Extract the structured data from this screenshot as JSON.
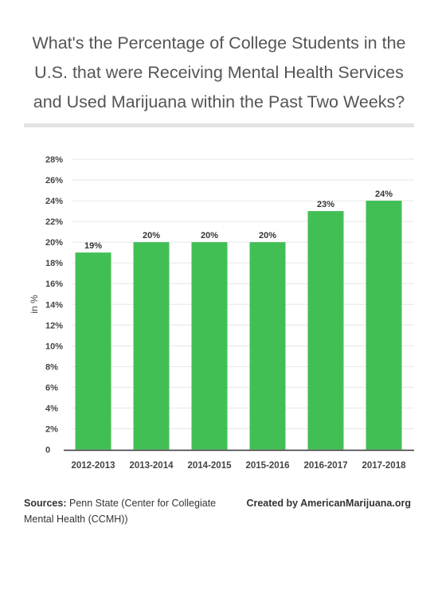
{
  "title_lines": [
    "What's the Percentage of College Students in the",
    "U.S. that were Receiving Mental Health Services",
    "and Used Marijuana within the Past Two Weeks?"
  ],
  "footer": {
    "sources_label": "Sources:",
    "sources_text": "Penn State (Center for Collegiate Mental Health (CCMH))",
    "credit": "Created by AmericanMarijuana.org"
  },
  "chart_data": {
    "type": "bar",
    "categories": [
      "2012-2013",
      "2013-2014",
      "2014-2015",
      "2015-2016",
      "2016-2017",
      "2017-2018"
    ],
    "values": [
      19,
      20,
      20,
      20,
      23,
      24
    ],
    "value_labels": [
      "19%",
      "20%",
      "20%",
      "20%",
      "23%",
      "24%"
    ],
    "ylabel": "in %",
    "xlabel": "",
    "ylim": [
      0,
      28
    ],
    "yticks": [
      0,
      2,
      4,
      6,
      8,
      10,
      12,
      14,
      16,
      18,
      20,
      22,
      24,
      26,
      28
    ],
    "ytick_labels": [
      "0",
      "2%",
      "4%",
      "6%",
      "8%",
      "10%",
      "12%",
      "14%",
      "16%",
      "18%",
      "20%",
      "22%",
      "24%",
      "26%",
      "28%"
    ],
    "grid": true,
    "bar_color": "#41bf55",
    "grid_color": "#e6e6e6"
  }
}
